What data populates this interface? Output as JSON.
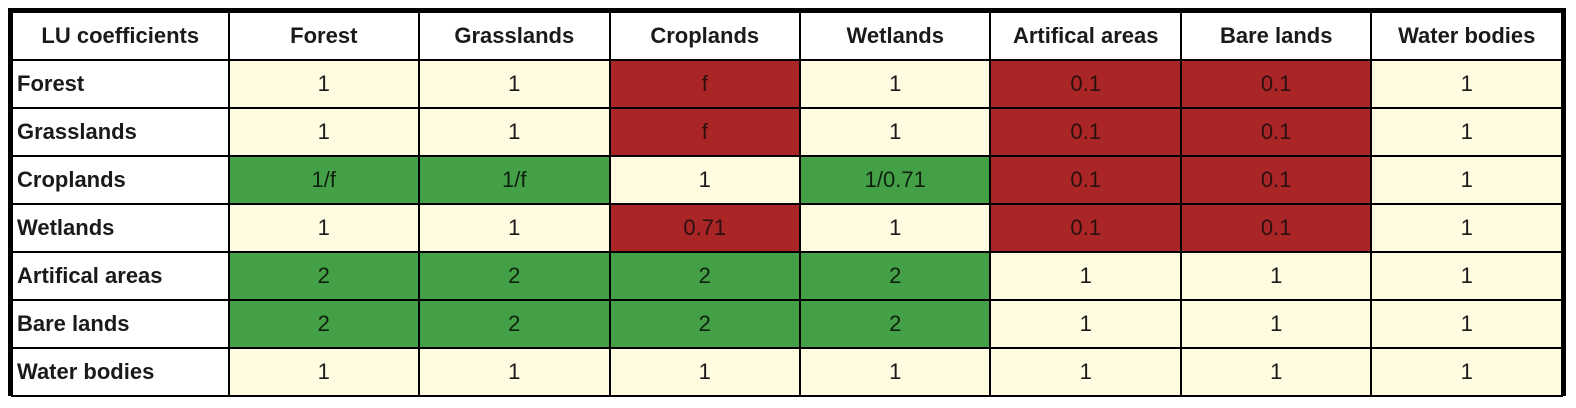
{
  "colors": {
    "neutral": "#fffbe0",
    "decrease": "#aa2626",
    "increase": "#43a047",
    "header": "#ffffff",
    "border": "#000000"
  },
  "chart_data": {
    "type": "table",
    "corner_label": "LU coefficients",
    "columns": [
      "Forest",
      "Grasslands",
      "Croplands",
      "Wetlands",
      "Artifical areas",
      "Bare lands",
      "Water bodies"
    ],
    "rows": [
      {
        "label": "Forest",
        "values": [
          "1",
          "1",
          "f",
          "1",
          "0.1",
          "0.1",
          "1"
        ],
        "colors": [
          "neutral",
          "neutral",
          "decrease",
          "neutral",
          "decrease",
          "decrease",
          "neutral"
        ]
      },
      {
        "label": "Grasslands",
        "values": [
          "1",
          "1",
          "f",
          "1",
          "0.1",
          "0.1",
          "1"
        ],
        "colors": [
          "neutral",
          "neutral",
          "decrease",
          "neutral",
          "decrease",
          "decrease",
          "neutral"
        ]
      },
      {
        "label": "Croplands",
        "values": [
          "1/f",
          "1/f",
          "1",
          "1/0.71",
          "0.1",
          "0.1",
          "1"
        ],
        "colors": [
          "increase",
          "increase",
          "neutral",
          "increase",
          "decrease",
          "decrease",
          "neutral"
        ]
      },
      {
        "label": "Wetlands",
        "values": [
          "1",
          "1",
          "0.71",
          "1",
          "0.1",
          "0.1",
          "1"
        ],
        "colors": [
          "neutral",
          "neutral",
          "decrease",
          "neutral",
          "decrease",
          "decrease",
          "neutral"
        ]
      },
      {
        "label": "Artifical areas",
        "values": [
          "2",
          "2",
          "2",
          "2",
          "1",
          "1",
          "1"
        ],
        "colors": [
          "increase",
          "increase",
          "increase",
          "increase",
          "neutral",
          "neutral",
          "neutral"
        ]
      },
      {
        "label": "Bare lands",
        "values": [
          "2",
          "2",
          "2",
          "2",
          "1",
          "1",
          "1"
        ],
        "colors": [
          "increase",
          "increase",
          "increase",
          "increase",
          "neutral",
          "neutral",
          "neutral"
        ]
      },
      {
        "label": "Water bodies",
        "values": [
          "1",
          "1",
          "1",
          "1",
          "1",
          "1",
          "1"
        ],
        "colors": [
          "neutral",
          "neutral",
          "neutral",
          "neutral",
          "neutral",
          "neutral",
          "neutral"
        ]
      }
    ]
  }
}
